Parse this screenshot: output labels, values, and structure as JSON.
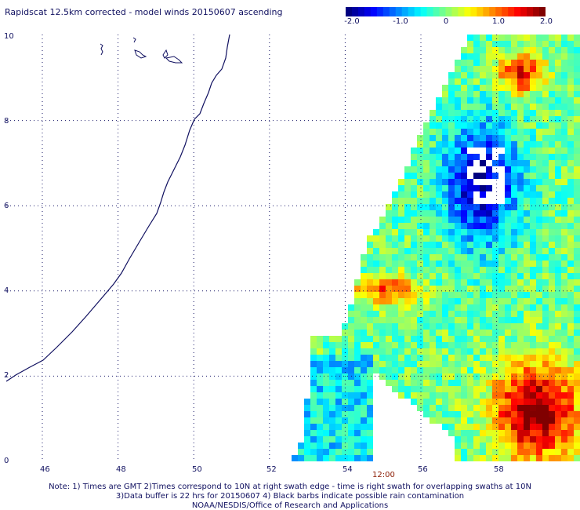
{
  "title": "Rapidscat 12.5km corrected - model winds 20150607 ascending",
  "colorbar": {
    "min": -2.0,
    "max": 2.0,
    "tick_labels": [
      "-2.0",
      "-1.0",
      "0",
      "1.0",
      "2.0"
    ],
    "tick_values": [
      -2.0,
      -1.0,
      0,
      1.0,
      2.0
    ]
  },
  "map": {
    "type": "heatmap",
    "xlim": [
      44.5,
      60
    ],
    "ylim": [
      0,
      10
    ],
    "x_tick_labels": [
      "46",
      "48",
      "50",
      "52",
      "54",
      "56",
      "58"
    ],
    "x_ticks": [
      46,
      48,
      50,
      52,
      54,
      56,
      58
    ],
    "y_tick_labels": [
      "0",
      "2",
      "4",
      "6",
      "8",
      "10"
    ],
    "y_ticks": [
      0,
      2,
      4,
      6,
      8,
      10
    ],
    "grid": "dotted",
    "time_label": "12:00",
    "coastline": "east-africa-somalia",
    "islands": "socotra-region"
  },
  "notes": [
    "Note: 1) Times are GMT 2)Times correspond to 10N at right swath edge - time is right swath for overlapping swaths at 10N",
    "3)Data buffer is 22 hrs for 20150607 4) Black barbs indicate possible rain contamination",
    "NOAA/NESDIS/Office of Research and Applications"
  ]
}
